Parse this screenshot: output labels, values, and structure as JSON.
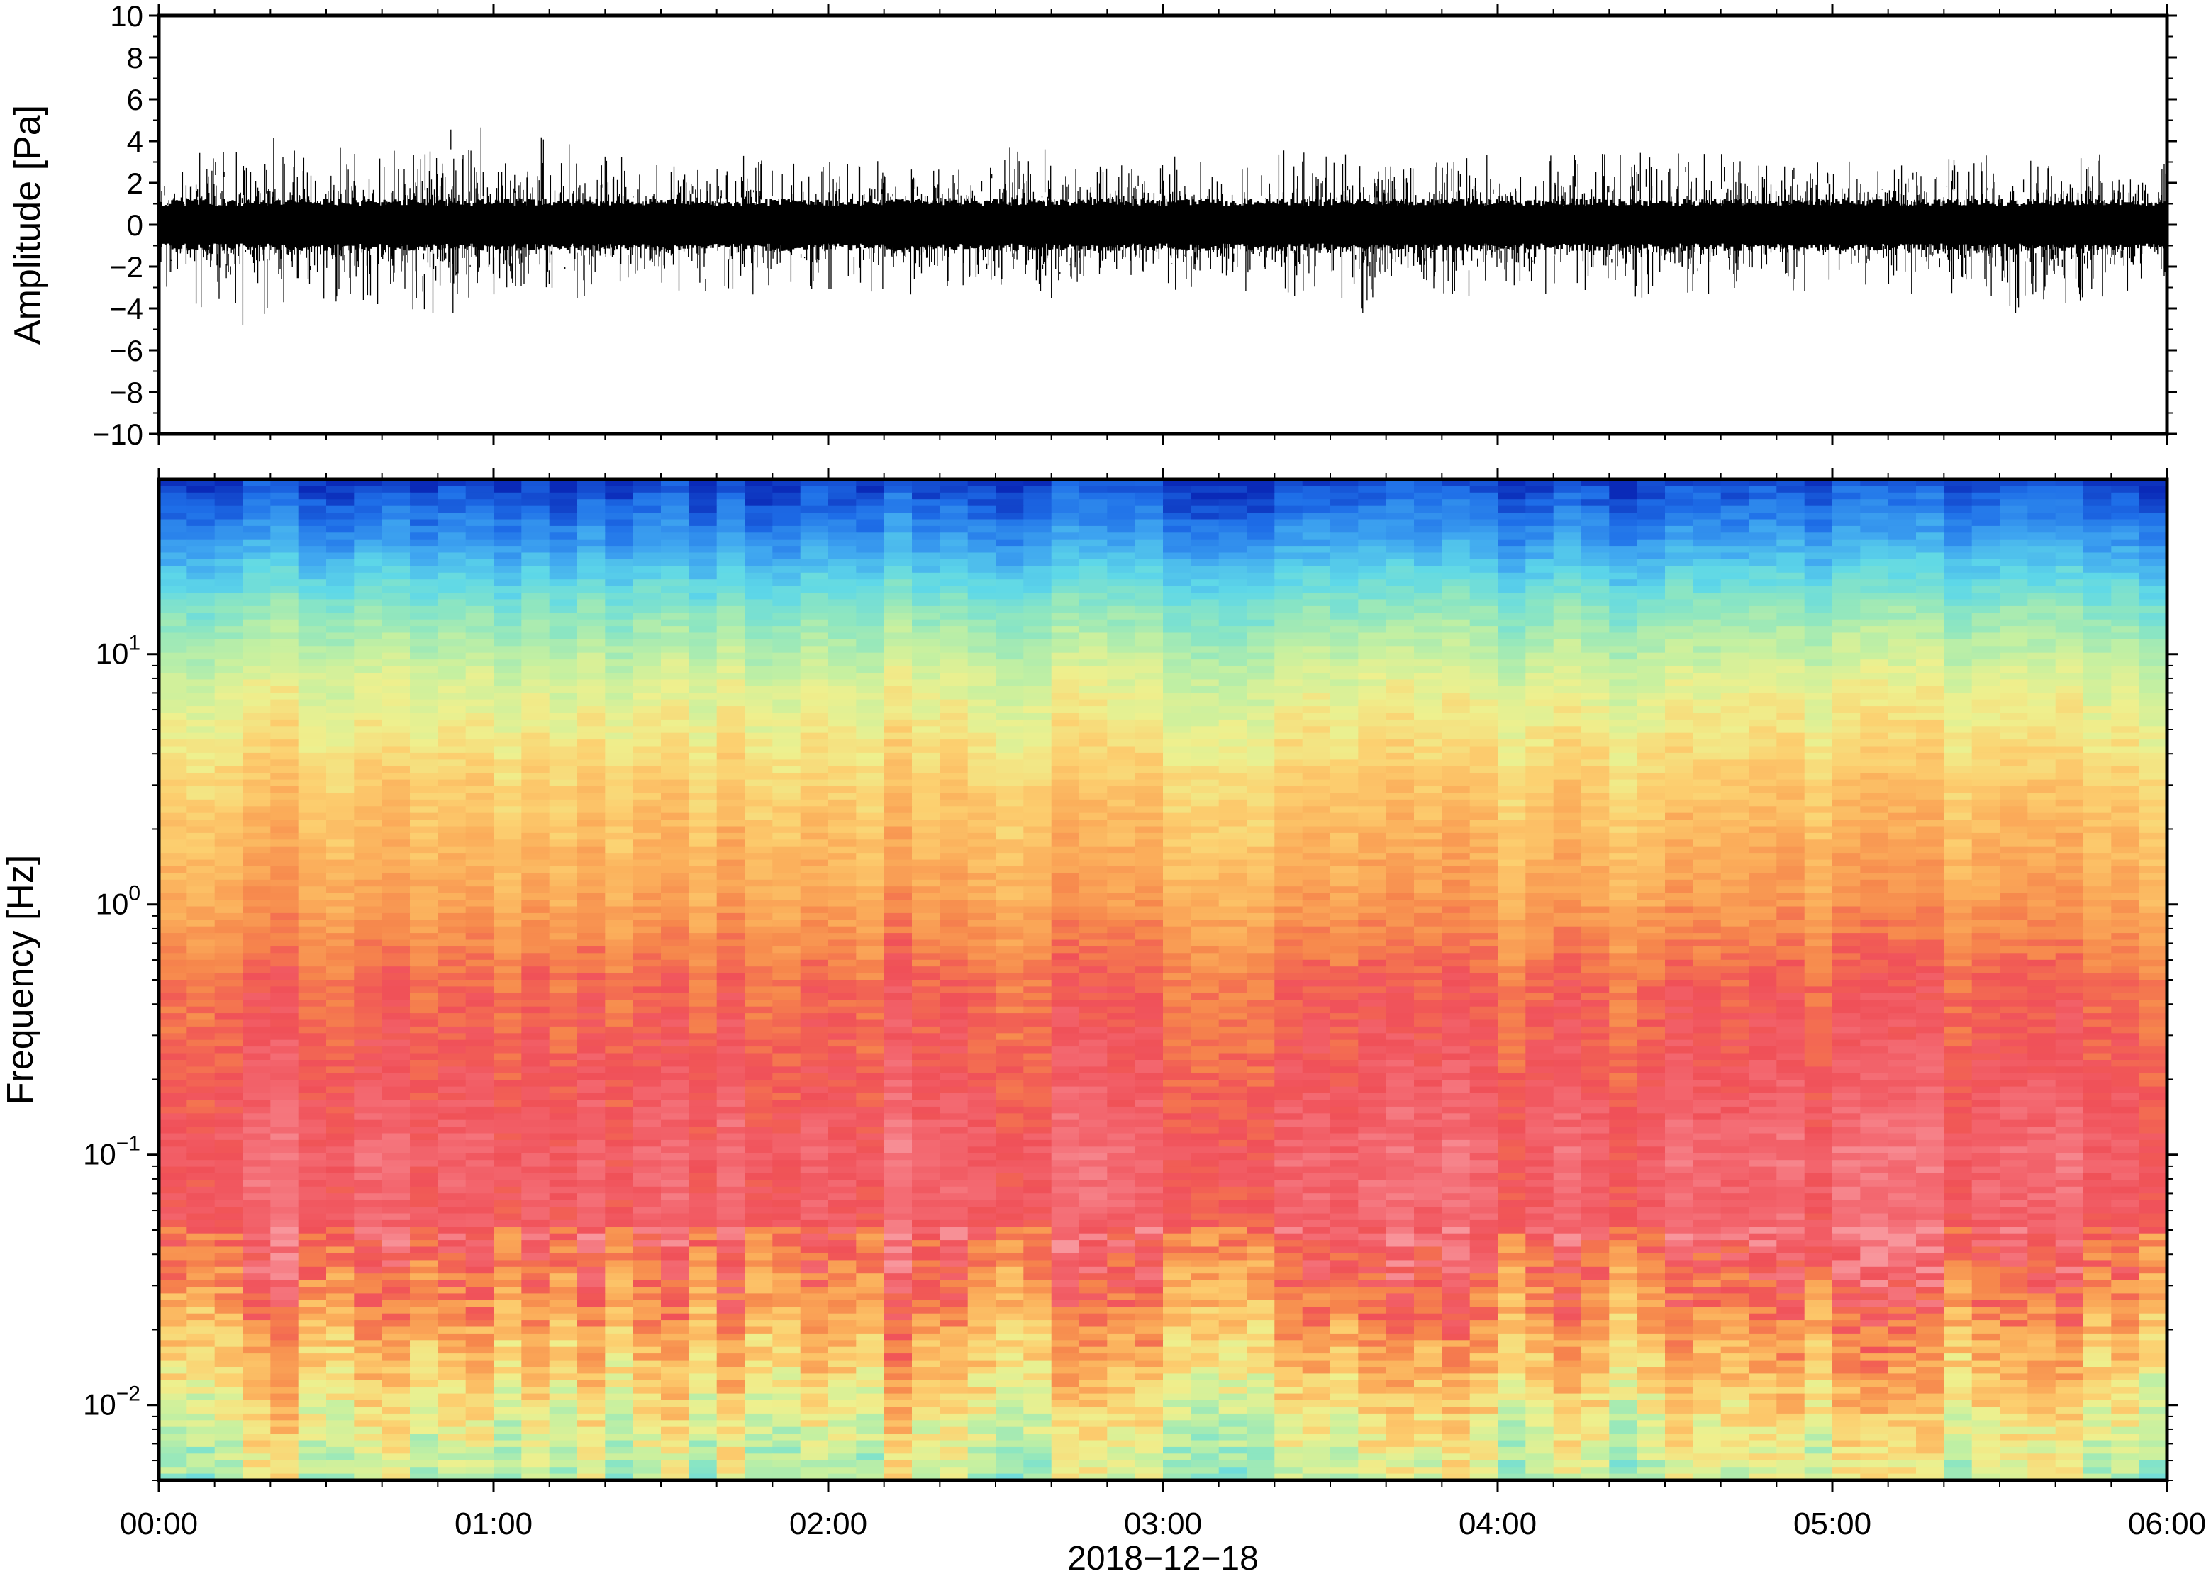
{
  "figure": {
    "date_label": "2018−12−18"
  },
  "chart_data": [
    {
      "type": "line",
      "panel": "waveform",
      "ylabel": "Amplitude [Pa]",
      "xlabel": "",
      "ylim": [
        -10,
        10
      ],
      "yticks": [
        10,
        8,
        6,
        4,
        2,
        0,
        -2,
        -4,
        -6,
        -8,
        -10
      ],
      "ytick_labels": [
        "10",
        "8",
        "6",
        "4",
        "2",
        "0",
        "−2",
        "−4",
        "−6",
        "−8",
        "−10"
      ],
      "xlim": [
        "00:00",
        "06:00"
      ],
      "typical_range": [
        -2,
        2
      ],
      "peak_max": 5.3,
      "peak_min": -4.8,
      "series": [
        {
          "color": "#000000",
          "x_hours": [
            0.0,
            0.25,
            0.5,
            0.75,
            0.82,
            1.0,
            1.25,
            1.5,
            1.75,
            2.0,
            2.25,
            2.5,
            2.6,
            2.75,
            3.0,
            3.25,
            3.5,
            3.65,
            3.75,
            4.0,
            4.25,
            4.5,
            4.75,
            5.0,
            5.25,
            5.5,
            5.75,
            6.0
          ],
          "upper_envelope": [
            3.2,
            3.4,
            3.5,
            3.8,
            5.3,
            4.5,
            3.6,
            3.2,
            3.0,
            3.0,
            3.2,
            3.0,
            4.3,
            3.0,
            3.2,
            3.3,
            3.5,
            3.2,
            3.4,
            3.2,
            3.3,
            3.5,
            3.2,
            3.0,
            3.1,
            3.2,
            3.4,
            3.0
          ],
          "lower_envelope": [
            -3.2,
            -4.7,
            -3.6,
            -3.8,
            -4.5,
            -3.5,
            -3.3,
            -3.0,
            -3.2,
            -3.0,
            -3.4,
            -3.0,
            -3.1,
            -3.0,
            -3.1,
            -3.2,
            -3.4,
            -4.8,
            -3.3,
            -3.2,
            -3.3,
            -3.6,
            -3.2,
            -3.0,
            -3.3,
            -4.2,
            -3.6,
            -3.2
          ]
        }
      ]
    },
    {
      "type": "heatmap",
      "panel": "spectrogram",
      "ylabel": "Frequency [Hz]",
      "yscale": "log",
      "ylim": [
        0.005,
        50
      ],
      "yticks": [
        10,
        1,
        0.1,
        0.01
      ],
      "ytick_labels": [
        {
          "base": "10",
          "exp": "1"
        },
        {
          "base": "10",
          "exp": "0"
        },
        {
          "base": "10",
          "exp": "−1"
        },
        {
          "base": "10",
          "exp": "−2"
        }
      ],
      "xlim": [
        "00:00",
        "06:00"
      ],
      "xtick_labels": [
        "00:00",
        "01:00",
        "02:00",
        "03:00",
        "04:00",
        "05:00",
        "06:00"
      ],
      "colormap": "spectral (low power = blue, high power = red/pink)",
      "power_profile": {
        "freq_hz": [
          50,
          30,
          15,
          8,
          3,
          1,
          0.5,
          0.2,
          0.1,
          0.05,
          0.03,
          0.015,
          0.008,
          0.005
        ],
        "relative_power": [
          0.02,
          0.15,
          0.38,
          0.52,
          0.65,
          0.75,
          0.84,
          0.88,
          0.92,
          0.9,
          0.82,
          0.68,
          0.56,
          0.48
        ]
      }
    }
  ]
}
